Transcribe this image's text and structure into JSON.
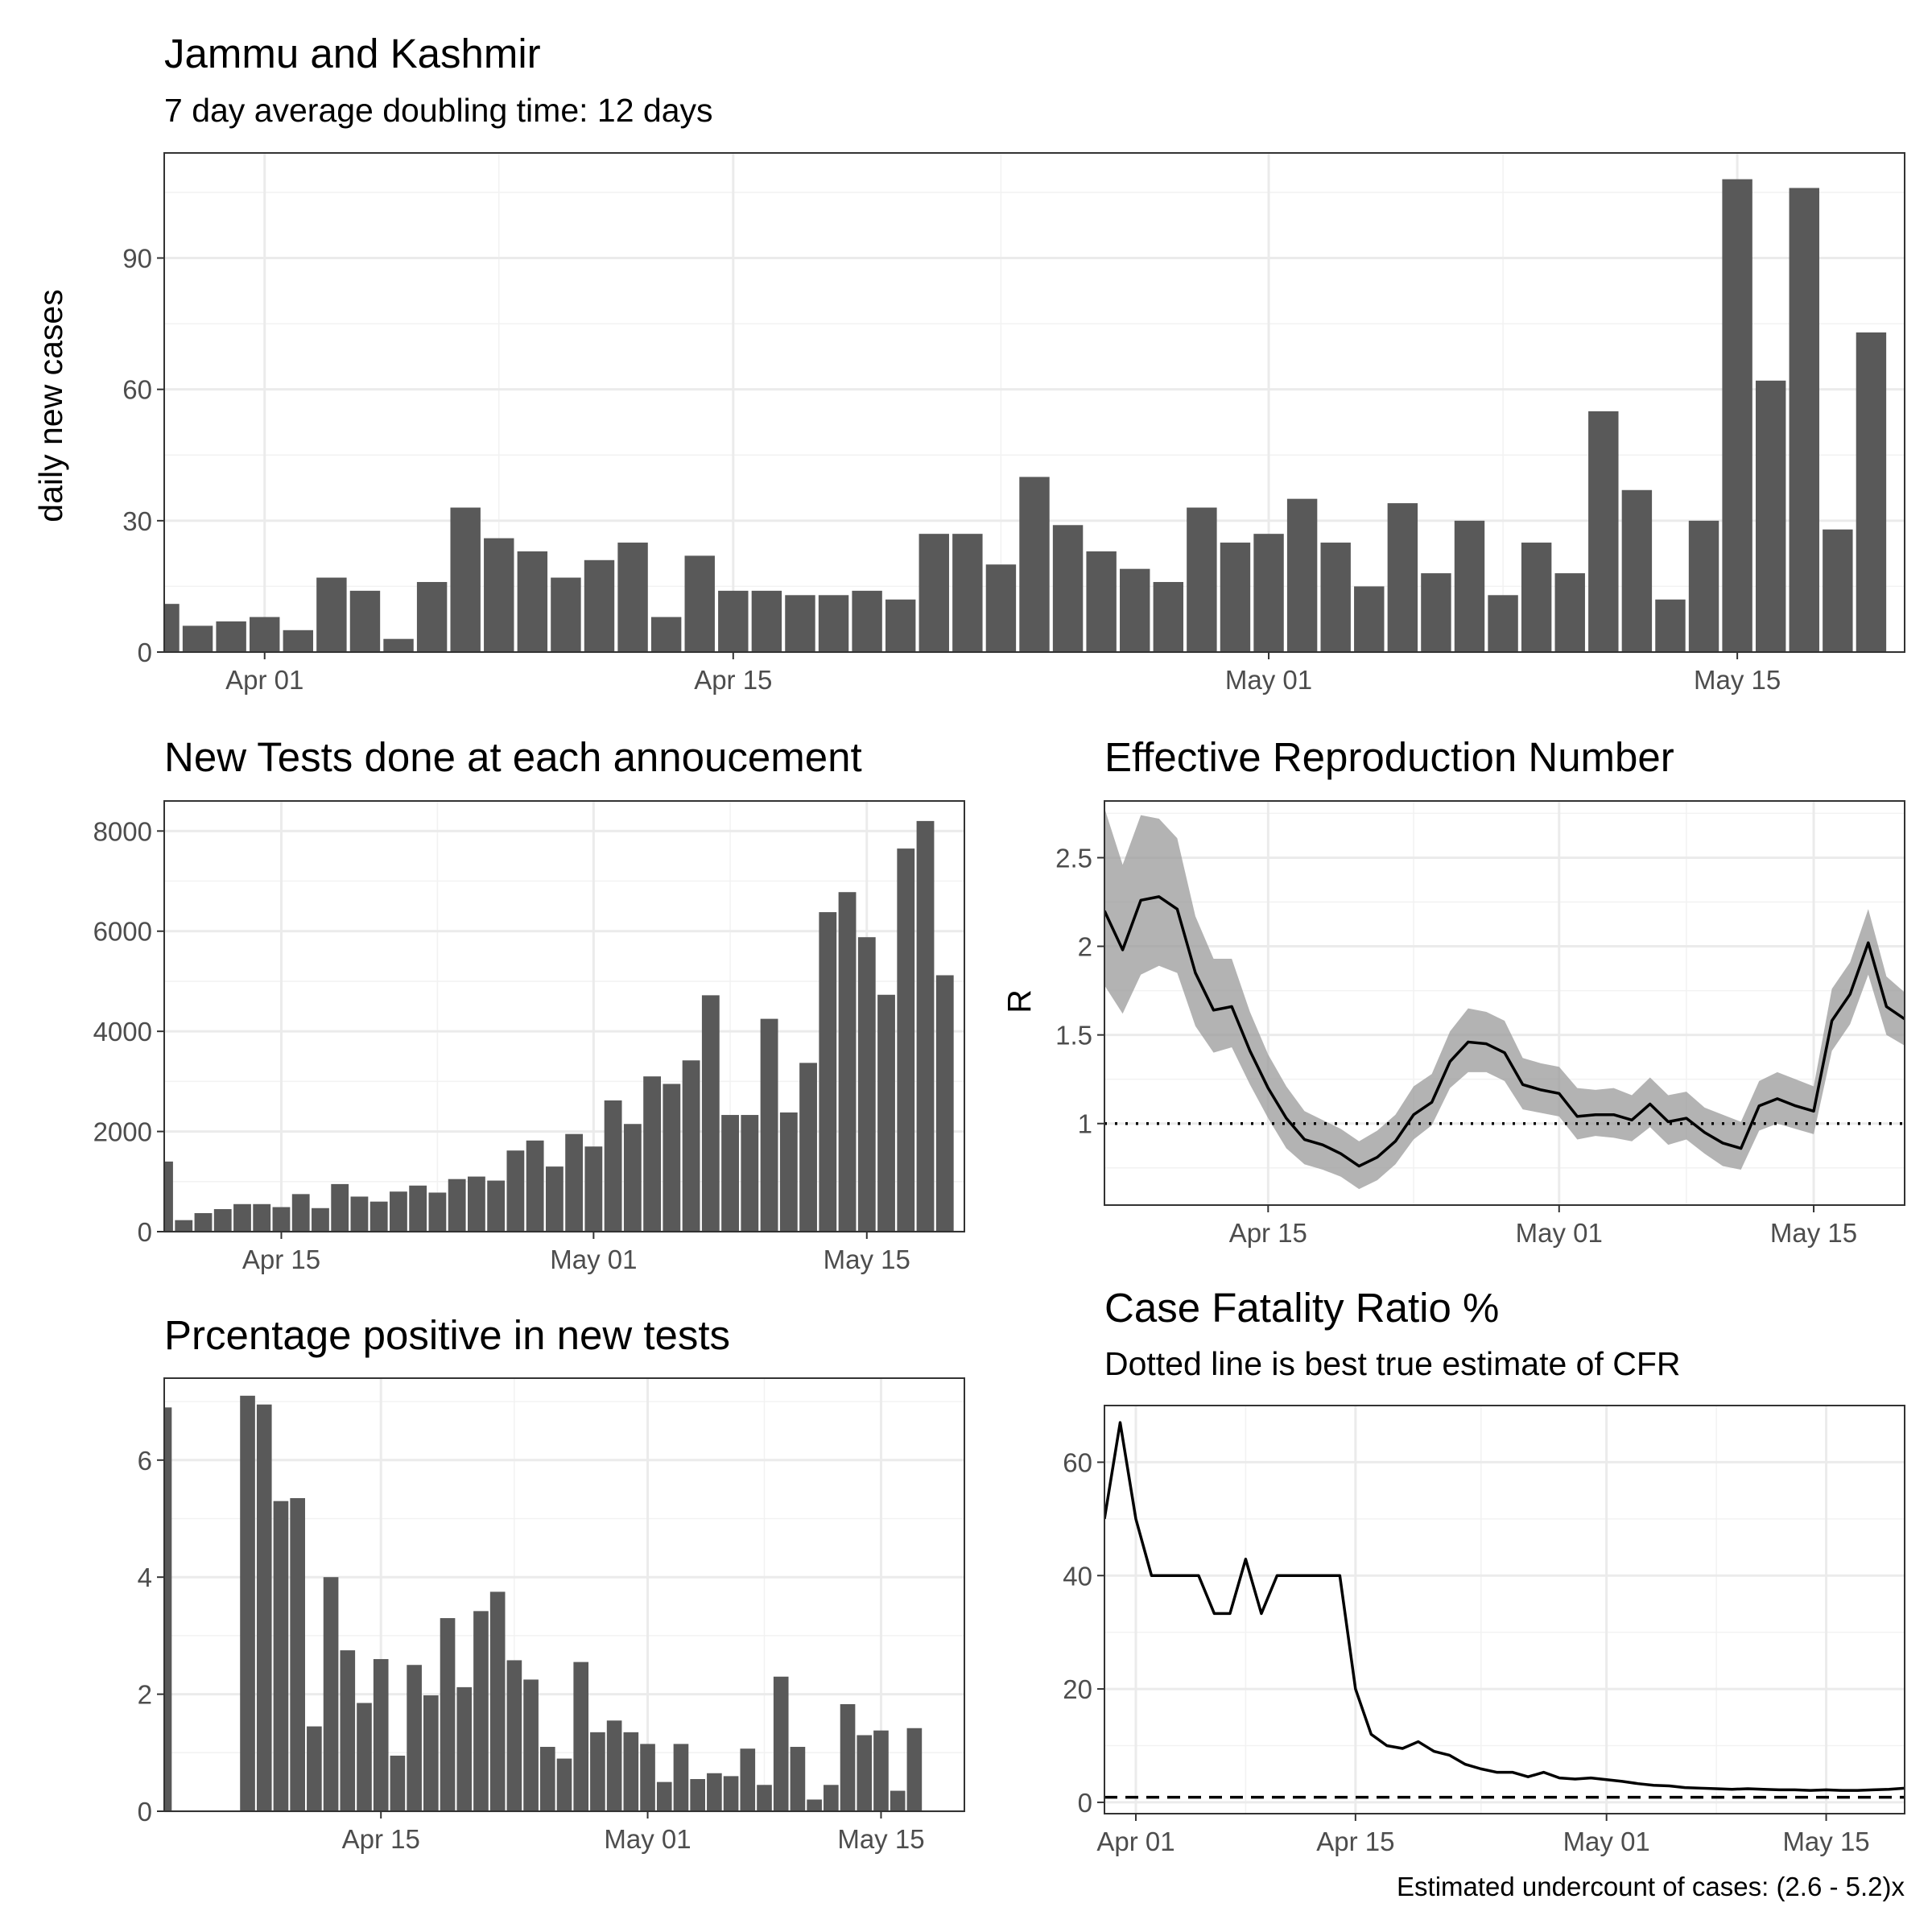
{
  "chart_data": [
    {
      "id": "daily_cases",
      "type": "bar",
      "title": "Jammu and Kashmir",
      "subtitle": "7 day average doubling time: 12 days",
      "xlabel": "",
      "ylabel": "daily new cases",
      "x_start": "2020-03-29",
      "x_ticks": [
        "Apr 01",
        "Apr 15",
        "May 01",
        "May 15"
      ],
      "y_ticks": [
        0,
        30,
        60,
        90
      ],
      "xlim": [
        "2020-03-29",
        "2020-05-20"
      ],
      "ylim": [
        0,
        114
      ],
      "grid": true,
      "values": [
        11,
        6,
        7,
        8,
        5,
        17,
        14,
        3,
        16,
        33,
        26,
        23,
        17,
        21,
        25,
        8,
        22,
        14,
        14,
        13,
        13,
        14,
        12,
        27,
        27,
        20,
        40,
        29,
        23,
        19,
        16,
        33,
        25,
        27,
        35,
        25,
        15,
        34,
        18,
        30,
        13,
        25,
        18,
        55,
        37,
        12,
        30,
        108,
        62,
        106,
        28,
        73
      ]
    },
    {
      "id": "new_tests",
      "type": "bar",
      "title": "New Tests done at each annoucement",
      "xlabel": "",
      "ylabel": "",
      "x_start": "2020-04-09",
      "x_ticks": [
        "Apr 15",
        "May 01",
        "May 15"
      ],
      "y_ticks": [
        0,
        2000,
        4000,
        6000,
        8000
      ],
      "xlim": [
        "2020-04-09",
        "2020-05-20"
      ],
      "ylim": [
        0,
        8600
      ],
      "grid": true,
      "values": [
        1400,
        230,
        370,
        450,
        550,
        550,
        490,
        750,
        470,
        950,
        700,
        600,
        800,
        920,
        780,
        1050,
        1100,
        1020,
        1620,
        1820,
        1300,
        1950,
        1700,
        2620,
        2150,
        3100,
        2950,
        3420,
        4720,
        2330,
        2330,
        4250,
        2380,
        3370,
        6380,
        6780,
        5880,
        4730,
        7650,
        8200,
        5120
      ]
    },
    {
      "id": "effective_r",
      "type": "line",
      "title": "Effective Reproduction Number",
      "xlabel": "",
      "ylabel": "R",
      "x_start": "2020-04-06",
      "x_ticks": [
        "Apr 15",
        "May 01",
        "May 15"
      ],
      "y_ticks": [
        1.0,
        1.5,
        2.0,
        2.5
      ],
      "xlim": [
        "2020-04-06",
        "2020-05-20"
      ],
      "ylim": [
        0.54,
        2.82
      ],
      "grid": true,
      "reference_line": {
        "y": 1.0,
        "style": "dotted"
      },
      "band_color": "#999999",
      "series": [
        {
          "r": [
            2.2,
            1.98,
            2.26,
            2.28,
            2.21,
            1.85,
            1.64,
            1.66,
            1.41,
            1.2,
            1.03,
            0.91,
            0.88,
            0.83,
            0.76,
            0.81,
            0.9,
            1.05,
            1.12,
            1.35,
            1.46,
            1.45,
            1.4,
            1.22,
            1.19,
            1.17,
            1.04,
            1.05,
            1.05,
            1.02,
            1.11,
            1.01,
            1.03,
            0.95,
            0.89,
            0.86,
            1.1,
            1.14,
            1.1,
            1.07,
            1.58,
            1.73,
            2.02,
            1.66,
            1.59
          ],
          "lower": [
            1.78,
            1.62,
            1.84,
            1.89,
            1.85,
            1.55,
            1.4,
            1.43,
            1.22,
            1.03,
            0.86,
            0.77,
            0.74,
            0.7,
            0.63,
            0.68,
            0.77,
            0.91,
            0.99,
            1.2,
            1.29,
            1.29,
            1.24,
            1.08,
            1.06,
            1.04,
            0.91,
            0.93,
            0.92,
            0.9,
            0.98,
            0.88,
            0.91,
            0.83,
            0.76,
            0.74,
            0.96,
            1.0,
            0.97,
            0.94,
            1.41,
            1.56,
            1.84,
            1.5,
            1.44
          ],
          "upper": [
            2.78,
            2.46,
            2.74,
            2.72,
            2.61,
            2.17,
            1.93,
            1.93,
            1.63,
            1.39,
            1.21,
            1.07,
            1.02,
            0.97,
            0.9,
            0.96,
            1.05,
            1.21,
            1.28,
            1.52,
            1.65,
            1.63,
            1.58,
            1.37,
            1.34,
            1.32,
            1.2,
            1.19,
            1.2,
            1.16,
            1.26,
            1.16,
            1.18,
            1.09,
            1.05,
            1.01,
            1.24,
            1.29,
            1.25,
            1.21,
            1.76,
            1.91,
            2.21,
            1.83,
            1.74
          ]
        }
      ]
    },
    {
      "id": "pct_positive",
      "type": "bar",
      "title": "Prcentage positive in new tests",
      "xlabel": "",
      "ylabel": "",
      "x_start": "2020-04-02",
      "x_ticks": [
        "Apr 15",
        "May 01",
        "May 15"
      ],
      "y_ticks": [
        0,
        2,
        4,
        6
      ],
      "xlim": [
        "2020-04-02",
        "2020-05-20"
      ],
      "ylim": [
        0,
        7.4
      ],
      "grid": true,
      "values": [
        6.9,
        null,
        null,
        null,
        null,
        7.1,
        6.95,
        5.3,
        5.35,
        1.45,
        4.0,
        2.75,
        1.85,
        2.6,
        0.95,
        2.5,
        1.98,
        3.3,
        2.12,
        3.42,
        3.75,
        2.58,
        2.25,
        1.1,
        0.9,
        2.55,
        1.35,
        1.55,
        1.35,
        1.15,
        0.5,
        1.15,
        0.55,
        0.65,
        0.6,
        1.07,
        0.45,
        2.3,
        1.1,
        0.2,
        0.45,
        1.83,
        1.3,
        1.38,
        0.35,
        1.42
      ]
    },
    {
      "id": "cfr",
      "type": "line",
      "title": "Case Fatality Ratio %",
      "subtitle": "Dotted line is best true estimate of CFR",
      "xlabel": "",
      "ylabel": "",
      "x_start": "2020-03-30",
      "x_ticks": [
        "Apr 01",
        "Apr 15",
        "May 01",
        "May 15"
      ],
      "y_ticks": [
        0,
        20,
        40,
        60
      ],
      "xlim": [
        "2020-03-30",
        "2020-05-20"
      ],
      "ylim": [
        -2,
        70
      ],
      "grid": true,
      "reference_line": {
        "y": 0.9,
        "style": "dashed"
      },
      "caption": "Estimated undercount of cases: (2.6 - 5.2)x",
      "series": [
        {
          "values": [
            50,
            67,
            50,
            40,
            40,
            40,
            40,
            33.3,
            33.3,
            42.9,
            33.3,
            40,
            40,
            40,
            40,
            40,
            20,
            12,
            10,
            9.5,
            10.7,
            9.0,
            8.3,
            6.7,
            5.9,
            5.3,
            5.3,
            4.5,
            5.3,
            4.3,
            4.1,
            4.3,
            4.0,
            3.7,
            3.3,
            3.0,
            2.9,
            2.6,
            2.5,
            2.4,
            2.3,
            2.4,
            2.3,
            2.2,
            2.2,
            2.1,
            2.2,
            2.1,
            2.1,
            2.2,
            2.3,
            2.5,
            2.6
          ]
        }
      ]
    }
  ]
}
